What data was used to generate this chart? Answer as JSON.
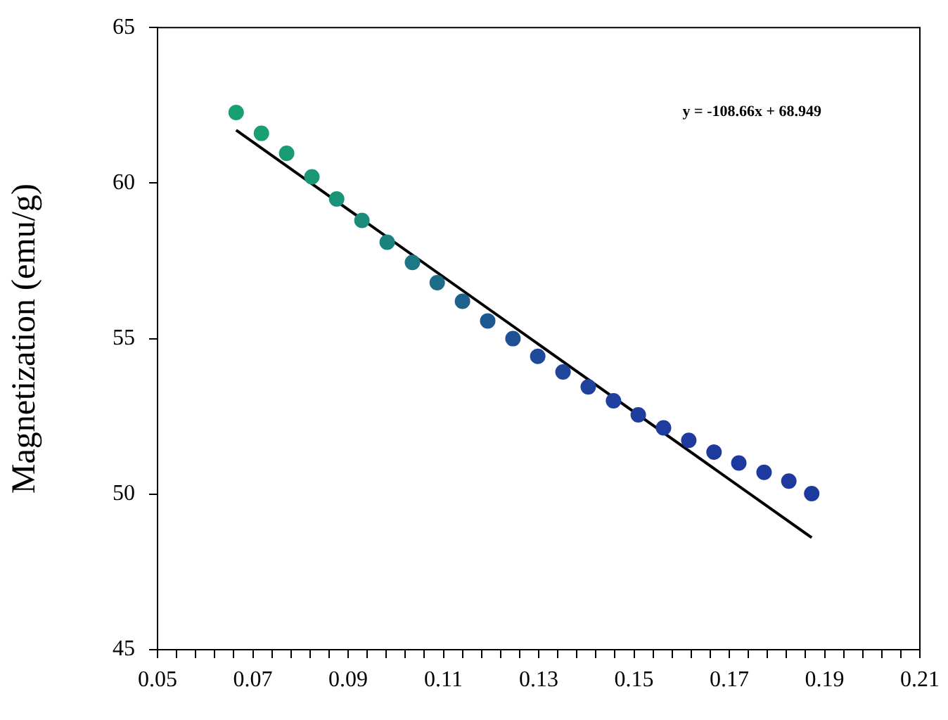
{
  "chart_data": {
    "type": "scatter",
    "ylabel": "Magnetization (emu/g)",
    "annotations": [
      "y = -108.66x + 68.949"
    ],
    "xlim": [
      0.05,
      0.21
    ],
    "ylim": [
      45,
      65
    ],
    "xticks": [
      0.05,
      {
        "value": 0.054,
        "label": null
      },
      {
        "value": 0.058,
        "label": null
      },
      {
        "value": 0.062,
        "label": null
      },
      {
        "value": 0.066,
        "label": null
      },
      0.07,
      {
        "value": 0.074,
        "label": null
      },
      {
        "value": 0.078,
        "label": null
      },
      {
        "value": 0.082,
        "label": null
      },
      {
        "value": 0.086,
        "label": null
      },
      0.09,
      {
        "value": 0.094,
        "label": null
      },
      {
        "value": 0.098,
        "label": null
      },
      {
        "value": 0.102,
        "label": null
      },
      {
        "value": 0.106,
        "label": null
      },
      0.11,
      {
        "value": 0.114,
        "label": null
      },
      {
        "value": 0.118,
        "label": null
      },
      {
        "value": 0.122,
        "label": null
      },
      {
        "value": 0.126,
        "label": null
      },
      0.13,
      {
        "value": 0.134,
        "label": null
      },
      {
        "value": 0.138,
        "label": null
      },
      {
        "value": 0.142,
        "label": null
      },
      {
        "value": 0.146,
        "label": null
      },
      0.15,
      {
        "value": 0.154,
        "label": null
      },
      {
        "value": 0.158,
        "label": null
      },
      {
        "value": 0.162,
        "label": null
      },
      {
        "value": 0.166,
        "label": null
      },
      0.17,
      {
        "value": 0.174,
        "label": null
      },
      {
        "value": 0.178,
        "label": null
      },
      {
        "value": 0.182,
        "label": null
      },
      {
        "value": 0.186,
        "label": null
      },
      0.19,
      {
        "value": 0.194,
        "label": null
      },
      {
        "value": 0.198,
        "label": null
      },
      {
        "value": 0.202,
        "label": null
      },
      {
        "value": 0.206,
        "label": null
      },
      0.21
    ],
    "yticks": [
      45,
      50,
      55,
      60,
      65
    ],
    "grid": false,
    "legend": false,
    "series": [
      {
        "marker": "circle",
        "x": [
          0.0665,
          0.0718,
          0.0771,
          0.0824,
          0.0876,
          0.0929,
          0.0982,
          0.1035,
          0.1087,
          0.114,
          0.1193,
          0.1246,
          0.1298,
          0.1351,
          0.1404,
          0.1457,
          0.1509,
          0.1562,
          0.1615,
          0.1668,
          0.172,
          0.1773,
          0.1825,
          0.1873
        ],
        "values": [
          62.27,
          61.6,
          60.96,
          60.2,
          59.49,
          58.8,
          58.1,
          57.45,
          56.8,
          56.2,
          55.57,
          55.0,
          54.43,
          53.93,
          53.45,
          53.0,
          52.55,
          52.13,
          51.73,
          51.35,
          51.0,
          50.7,
          50.42,
          50.02
        ],
        "colors": [
          "#18a070",
          "#18a070",
          "#189c72",
          "#189874",
          "#199478",
          "#1a8c7c",
          "#1b8280",
          "#1c7884",
          "#1d6c88",
          "#1e618c",
          "#1e5890",
          "#1f5094",
          "#1f4a98",
          "#1f469a",
          "#1f439c",
          "#1f409e",
          "#1f3e9e",
          "#1f3c9e",
          "#1f3b9e",
          "#1f3a9e",
          "#1f3a9e",
          "#1f3a9e",
          "#1f3a9e",
          "#1f3a9e"
        ]
      },
      {
        "type": "line",
        "color": "#000000",
        "x": [
          0.0665,
          0.1873
        ],
        "values": [
          61.7,
          48.6
        ]
      }
    ]
  }
}
